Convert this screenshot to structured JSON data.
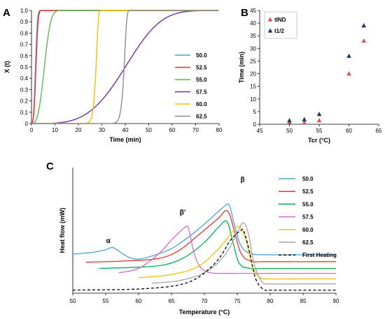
{
  "panels": [
    "A",
    "B",
    "C"
  ],
  "chart_data": [
    {
      "panel": "A",
      "type": "line",
      "xlabel": "Time (min)",
      "ylabel": "X (t)",
      "xlim": [
        0,
        80
      ],
      "ylim": [
        0,
        1.0
      ],
      "xticks": [
        "0",
        "10",
        "20",
        "30",
        "40",
        "50",
        "60",
        "70",
        "80"
      ],
      "yticks": [
        "0",
        "0.1",
        "0.2",
        "0.3",
        "0.4",
        "0.5",
        "0.6",
        "0.7",
        "0.8",
        "0.9",
        "1.0"
      ],
      "grid": false,
      "legend_position": "right",
      "series": [
        {
          "name": "50.0",
          "color": "#4aa3d8",
          "t_half": 1.7,
          "n": 3.0
        },
        {
          "name": "52.5",
          "color": "#e8322c",
          "t_half": 1.9,
          "n": 3.0
        },
        {
          "name": "55.0",
          "color": "#5cb84a",
          "t_half": 5.5,
          "n": 3.0
        },
        {
          "name": "57.5",
          "color": "#7030a0",
          "t_half": 40.0,
          "n": 3.8
        },
        {
          "name": "60.0",
          "color": "#f5c000",
          "t_half": 27.5,
          "n": 35.0
        },
        {
          "name": "62.5",
          "color": "#8c8c8c",
          "t_half": 39.5,
          "n": 45.0
        }
      ]
    },
    {
      "panel": "B",
      "type": "scatter",
      "xlabel": "Tcr (°C)",
      "ylabel": "Time (min)",
      "xlim": [
        45,
        65
      ],
      "ylim": [
        0,
        45
      ],
      "xticks": [
        "45",
        "50",
        "55",
        "60",
        "65"
      ],
      "yticks": [
        "0",
        "5",
        "10",
        "15",
        "20",
        "25",
        "30",
        "35",
        "40",
        "45"
      ],
      "grid": false,
      "legend_position": "top-left",
      "series": [
        {
          "name": "tIND",
          "color": "#d9534f",
          "x": [
            50.0,
            52.5,
            55.0,
            60.0,
            62.5
          ],
          "y": [
            0.8,
            0.6,
            1.5,
            20.0,
            33.0
          ]
        },
        {
          "name": "t1/2",
          "color": "#1f3864",
          "x": [
            50.0,
            52.5,
            55.0,
            60.0,
            62.5
          ],
          "y": [
            1.5,
            1.9,
            4.0,
            27.0,
            39.0
          ]
        }
      ]
    },
    {
      "panel": "C",
      "type": "line",
      "xlabel": "Temperature (°C)",
      "ylabel": "Heat flow (mW)",
      "xlim": [
        50,
        90
      ],
      "xticks": [
        "50",
        "55",
        "60",
        "65",
        "70",
        "75",
        "80",
        "85",
        "90"
      ],
      "grid": false,
      "legend_position": "top-right",
      "annotations": [
        {
          "text": "α",
          "x": 55.4,
          "y": 0.73
        },
        {
          "text": "β'",
          "x": 66.7,
          "y": 1.19
        },
        {
          "text": "β",
          "x": 75.8,
          "y": 1.72
        }
      ],
      "series": [
        {
          "name": "50.0",
          "color": "#4aa3d8",
          "dash": false,
          "x": [
            50,
            53,
            55,
            56,
            57,
            58.5,
            60,
            62,
            65,
            68,
            71,
            73,
            73.8,
            74.5,
            75.5,
            77,
            80,
            85,
            90
          ],
          "y": [
            0.55,
            0.58,
            0.62,
            0.66,
            0.6,
            0.5,
            0.47,
            0.52,
            0.64,
            0.86,
            1.13,
            1.32,
            1.34,
            1.05,
            0.7,
            0.56,
            0.54,
            0.54,
            0.54
          ]
        },
        {
          "name": "52.5",
          "color": "#e8322c",
          "dash": false,
          "x": [
            52,
            58,
            63,
            66,
            69,
            72,
            73.5,
            74.5,
            75.5,
            77,
            80,
            90
          ],
          "y": [
            0.42,
            0.44,
            0.48,
            0.6,
            0.85,
            1.12,
            1.25,
            0.95,
            0.58,
            0.44,
            0.43,
            0.43
          ]
        },
        {
          "name": "55.0",
          "color": "#00b050",
          "dash": false,
          "x": [
            54,
            60,
            64,
            67,
            70,
            72,
            73.4,
            74.3,
            75.3,
            77,
            80,
            90
          ],
          "y": [
            0.32,
            0.34,
            0.38,
            0.5,
            0.74,
            0.97,
            1.08,
            0.76,
            0.4,
            0.32,
            0.32,
            0.32
          ]
        },
        {
          "name": "57.5",
          "color": "#d16ad4",
          "dash": false,
          "x": [
            57,
            60,
            63,
            65,
            67,
            67.6,
            68.4,
            69.3,
            70.5,
            72,
            75,
            80,
            90
          ],
          "y": [
            0.25,
            0.32,
            0.55,
            0.78,
            0.98,
            0.96,
            0.58,
            0.35,
            0.26,
            0.24,
            0.24,
            0.24,
            0.24
          ]
        },
        {
          "name": "60.0",
          "color": "#f5c000",
          "dash": false,
          "x": [
            60,
            65,
            69,
            72,
            74,
            75.2,
            76.2,
            77.3,
            78.5,
            80,
            85,
            90
          ],
          "y": [
            0.17,
            0.22,
            0.35,
            0.62,
            0.88,
            1.0,
            0.82,
            0.35,
            0.17,
            0.15,
            0.15,
            0.15
          ]
        },
        {
          "name": "62.5",
          "color": "#a6a6a6",
          "dash": false,
          "x": [
            62,
            66,
            70,
            73,
            75,
            75.9,
            76.7,
            77.6,
            78.8,
            80,
            85,
            90
          ],
          "y": [
            0.08,
            0.12,
            0.25,
            0.52,
            0.9,
            1.06,
            0.88,
            0.38,
            0.1,
            0.07,
            0.07,
            0.07
          ]
        },
        {
          "name": "First Heating",
          "color": "#000000",
          "dash": true,
          "x": [
            50,
            58,
            62,
            66,
            69,
            72,
            74,
            75.5,
            76,
            76.8,
            77.8,
            79,
            80,
            84,
            90
          ],
          "y": [
            -0.03,
            -0.02,
            0.0,
            0.05,
            0.17,
            0.45,
            0.78,
            0.93,
            0.92,
            0.62,
            0.15,
            -0.02,
            -0.03,
            -0.03,
            -0.03
          ]
        }
      ]
    }
  ]
}
